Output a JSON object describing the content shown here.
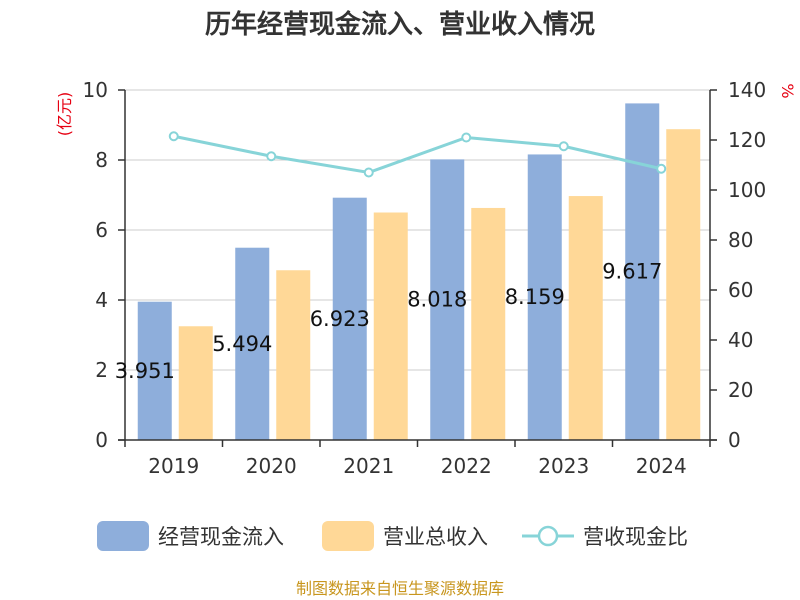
{
  "title": "历年经营现金流入、营业收入情况",
  "y_left_unit": "(亿元)",
  "y_right_unit": "%",
  "source": "制图数据来自恒生聚源数据库",
  "colors": {
    "cash_inflow": "#8eaedb",
    "revenue": "#ffd897",
    "ratio": "#87d4d8",
    "axis": "#333333",
    "grid": "#cccccc",
    "unit": "#e60012",
    "source": "#c8961e"
  },
  "chart_data": {
    "type": "bar",
    "title": "历年经营现金流入、营业收入情况",
    "categories": [
      "2019",
      "2020",
      "2021",
      "2022",
      "2023",
      "2024"
    ],
    "y_left": {
      "label": "(亿元)",
      "range": [
        0,
        10
      ],
      "ticks": [
        "0",
        "2",
        "4",
        "6",
        "8",
        "10"
      ]
    },
    "y_right": {
      "label": "%",
      "range": [
        0,
        140
      ],
      "ticks": [
        "0",
        "20",
        "40",
        "60",
        "80",
        "100",
        "120",
        "140"
      ]
    },
    "grid": true,
    "legend_position": "bottom",
    "series": [
      {
        "name": "经营现金流入",
        "type": "bar",
        "axis": "left",
        "values": [
          3.951,
          5.494,
          6.923,
          8.018,
          8.159,
          9.617
        ],
        "labels": [
          "3.951",
          "5.494",
          "6.923",
          "8.018",
          "8.159",
          "9.617"
        ]
      },
      {
        "name": "营业总收入",
        "type": "bar",
        "axis": "left",
        "values": [
          3.25,
          4.85,
          6.5,
          6.63,
          6.97,
          8.88
        ]
      },
      {
        "name": "营收现金比",
        "type": "line",
        "axis": "right",
        "values": [
          121.5,
          113.5,
          107,
          121,
          117.5,
          108.5
        ]
      }
    ]
  }
}
